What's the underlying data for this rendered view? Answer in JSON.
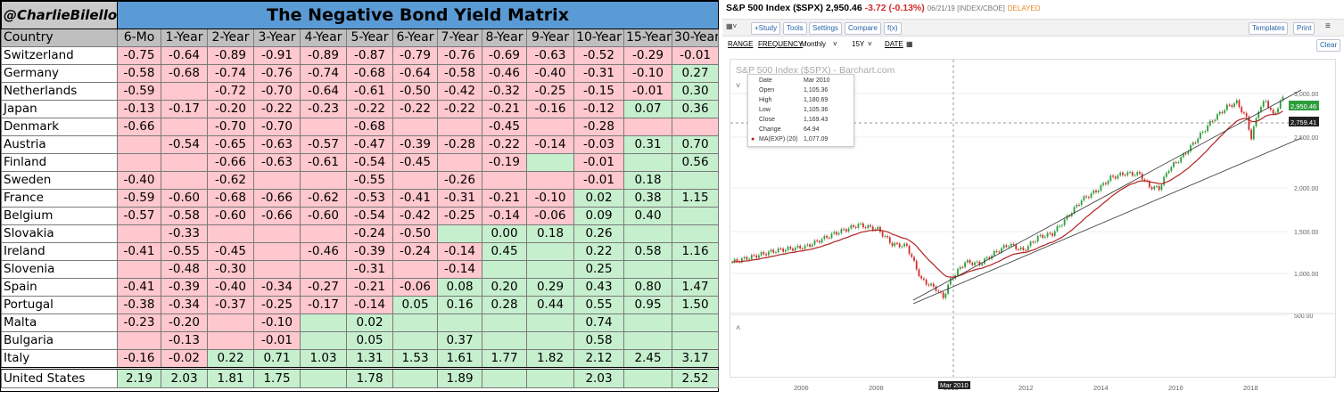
{
  "matrix": {
    "handle": "@CharlieBilello",
    "title": "The Negative Bond Yield Matrix",
    "headers": [
      "Country",
      "6-Mo",
      "1-Year",
      "2-Year",
      "3-Year",
      "4-Year",
      "5-Year",
      "6-Year",
      "7-Year",
      "8-Year",
      "9-Year",
      "10-Year",
      "15-Year",
      "30-Year"
    ],
    "rows": [
      {
        "country": "Switzerland",
        "cells": [
          "-0.75",
          "-0.64",
          "-0.89",
          "-0.91",
          "-0.89",
          "-0.87",
          "-0.79",
          "-0.76",
          "-0.69",
          "-0.63",
          "-0.52",
          "-0.29",
          "-0.01"
        ]
      },
      {
        "country": "Germany",
        "cells": [
          "-0.58",
          "-0.68",
          "-0.74",
          "-0.76",
          "-0.74",
          "-0.68",
          "-0.64",
          "-0.58",
          "-0.46",
          "-0.40",
          "-0.31",
          "-0.10",
          "0.27"
        ]
      },
      {
        "country": "Netherlands",
        "cells": [
          "-0.59",
          "",
          "-0.72",
          "-0.70",
          "-0.64",
          "-0.61",
          "-0.50",
          "-0.42",
          "-0.32",
          "-0.25",
          "-0.15",
          "-0.01",
          "0.30"
        ]
      },
      {
        "country": "Japan",
        "cells": [
          "-0.13",
          "-0.17",
          "-0.20",
          "-0.22",
          "-0.23",
          "-0.22",
          "-0.22",
          "-0.22",
          "-0.21",
          "-0.16",
          "-0.12",
          "0.07",
          "0.36"
        ]
      },
      {
        "country": "Denmark",
        "cells": [
          "-0.66",
          "",
          "-0.70",
          "-0.70",
          "",
          "-0.68",
          "",
          "",
          "-0.45",
          "",
          "-0.28",
          "",
          ""
        ]
      },
      {
        "country": "Austria",
        "cells": [
          "",
          "-0.54",
          "-0.65",
          "-0.63",
          "-0.57",
          "-0.47",
          "-0.39",
          "-0.28",
          "-0.22",
          "-0.14",
          "-0.03",
          "0.31",
          "0.70"
        ]
      },
      {
        "country": "Finland",
        "cells": [
          "",
          "",
          "-0.66",
          "-0.63",
          "-0.61",
          "-0.54",
          "-0.45",
          "",
          "-0.19",
          "",
          "-0.01",
          "",
          "0.56"
        ]
      },
      {
        "country": "Sweden",
        "cells": [
          "-0.40",
          "",
          "-0.62",
          "",
          "",
          "-0.55",
          "",
          "-0.26",
          "",
          "",
          "-0.01",
          "0.18",
          ""
        ]
      },
      {
        "country": "France",
        "cells": [
          "-0.59",
          "-0.60",
          "-0.68",
          "-0.66",
          "-0.62",
          "-0.53",
          "-0.41",
          "-0.31",
          "-0.21",
          "-0.10",
          "0.02",
          "0.38",
          "1.15"
        ]
      },
      {
        "country": "Belgium",
        "cells": [
          "-0.57",
          "-0.58",
          "-0.60",
          "-0.66",
          "-0.60",
          "-0.54",
          "-0.42",
          "-0.25",
          "-0.14",
          "-0.06",
          "0.09",
          "0.40",
          ""
        ]
      },
      {
        "country": "Slovakia",
        "cells": [
          "",
          "-0.33",
          "",
          "",
          "",
          "-0.24",
          "-0.50",
          "",
          "0.00",
          "0.18",
          "0.26",
          "",
          ""
        ]
      },
      {
        "country": "Ireland",
        "cells": [
          "-0.41",
          "-0.55",
          "-0.45",
          "",
          "-0.46",
          "-0.39",
          "-0.24",
          "-0.14",
          "0.45",
          "",
          "0.22",
          "0.58",
          "1.16"
        ]
      },
      {
        "country": "Slovenia",
        "cells": [
          "",
          "-0.48",
          "-0.30",
          "",
          "",
          "-0.31",
          "",
          "-0.14",
          "",
          "",
          "0.25",
          "",
          ""
        ]
      },
      {
        "country": "Spain",
        "cells": [
          "-0.41",
          "-0.39",
          "-0.40",
          "-0.34",
          "-0.27",
          "-0.21",
          "-0.06",
          "0.08",
          "0.20",
          "0.29",
          "0.43",
          "0.80",
          "1.47"
        ]
      },
      {
        "country": "Portugal",
        "cells": [
          "-0.38",
          "-0.34",
          "-0.37",
          "-0.25",
          "-0.17",
          "-0.14",
          "0.05",
          "0.16",
          "0.28",
          "0.44",
          "0.55",
          "0.95",
          "1.50"
        ]
      },
      {
        "country": "Malta",
        "cells": [
          "-0.23",
          "-0.20",
          "",
          "-0.10",
          "",
          "0.02",
          "",
          "",
          "",
          "",
          "0.74",
          "",
          ""
        ]
      },
      {
        "country": "Bulgaria",
        "cells": [
          "",
          "-0.13",
          "",
          "-0.01",
          "",
          "0.05",
          "",
          "0.37",
          "",
          "",
          "0.58",
          "",
          ""
        ]
      },
      {
        "country": "Italy",
        "cells": [
          "-0.16",
          "-0.02",
          "0.22",
          "0.71",
          "1.03",
          "1.31",
          "1.53",
          "1.61",
          "1.77",
          "1.82",
          "2.12",
          "2.45",
          "3.17"
        ]
      },
      {
        "country": "United States",
        "cells": [
          "2.19",
          "2.03",
          "1.81",
          "1.75",
          "",
          "1.78",
          "",
          "1.89",
          "",
          "",
          "2.03",
          "",
          "2.52"
        ]
      }
    ],
    "colors": {
      "negative": "#ffc7ce",
      "positive": "#c6efce",
      "title_bg": "#5b9bd5",
      "header_bg": "#bfbfbf"
    }
  },
  "chart": {
    "symbol_title": "S&P 500 Index ($SPX)",
    "price": "2,950.46",
    "change": "-3.72 (-0.13%)",
    "meta": "06/21/19 [INDEX/CBOE]",
    "delayed": "DELAYED",
    "toolbar": {
      "study": "+Study",
      "tools": "Tools",
      "settings": "Settings",
      "compare": "Compare",
      "fx": "f(x)",
      "templates": "Templates",
      "print": "Print"
    },
    "range": {
      "range": "RANGE",
      "frequency": "FREQUENCY",
      "freq_val": "Monthly",
      "period": "15Y",
      "date": "DATE",
      "clear": "Clear"
    },
    "watermark": "S&P 500 Index ($SPX) - Barchart.com",
    "tooltip": {
      "date_label": "Date",
      "date": "Mar 2010",
      "open_label": "Open",
      "open": "1,105.36",
      "high_label": "High",
      "high": "1,180.69",
      "low_label": "Low",
      "low": "1,105.36",
      "close_label": "Close",
      "close": "1,169.43",
      "change_label": "Change",
      "change": "64.94",
      "ma_label": "MA(EXP) (20)",
      "ma": "1,077.09"
    },
    "price_labels": [
      "3,000.00",
      "2,500.00",
      "2,000.00",
      "1,500.00",
      "1,000.00",
      "500.00"
    ],
    "last_price_tag": "2,950.46",
    "ma_tag": "2,759.41",
    "x_labels": [
      "2006",
      "2008",
      "2010",
      "2012",
      "2014",
      "2016",
      "2018"
    ],
    "cursor_label": "Mar 2010",
    "colors": {
      "up": "#2e9e3c",
      "down": "#d12b2b",
      "ma": "#b22222",
      "channel": "#333333"
    }
  }
}
